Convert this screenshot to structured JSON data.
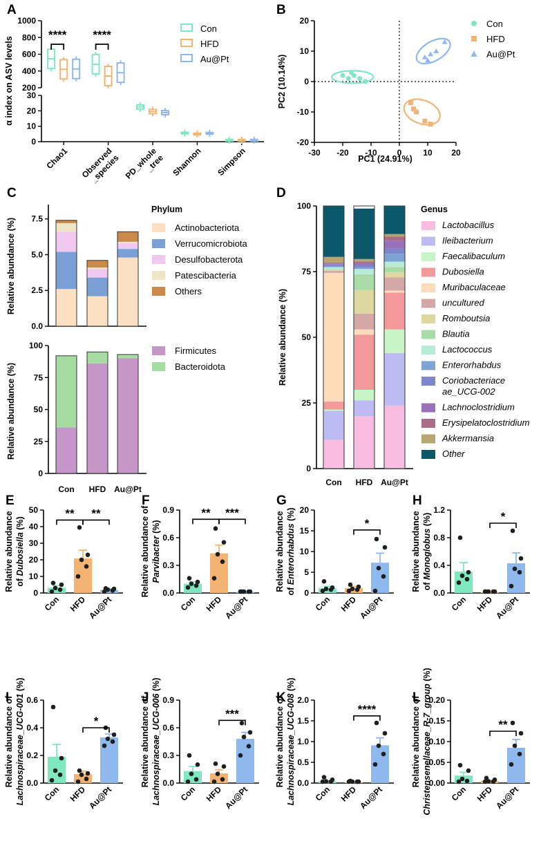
{
  "colors": {
    "con": "#7fe8c0",
    "hfd": "#f5b373",
    "aupt": "#8fb8ee",
    "axis": "#000000",
    "dark": "#1f1f1f"
  },
  "groups": [
    "Con",
    "HFD",
    "Au@Pt"
  ],
  "panels": [
    {
      "id": "A",
      "type": "box",
      "ylabel": "α index on ASV levels",
      "categories": [
        "Chao1",
        "Observed\n_species",
        "PD_whole\n_tree",
        "Shannon",
        "Simpson"
      ],
      "upper_ticks": [
        "200",
        "400",
        "600",
        "800",
        "1000"
      ],
      "lower_ticks": [
        "0",
        "10",
        "20",
        "30"
      ],
      "series": [
        {
          "name": "Con",
          "values": [
            545,
            480,
            22.5,
            5.6,
            0.95
          ]
        },
        {
          "name": "HFD",
          "values": [
            420,
            340,
            19.5,
            5.0,
            0.92
          ]
        },
        {
          "name": "Au@Pt",
          "values": [
            425,
            380,
            18.8,
            5.4,
            0.94
          ]
        }
      ],
      "annotations": [
        {
          "between": "Con-HFD",
          "cat": "Chao1",
          "label": "****"
        },
        {
          "between": "Con-HFD",
          "cat": "Observed_species",
          "label": "****"
        }
      ]
    },
    {
      "id": "B",
      "type": "scatter",
      "xlabel": "PC1 (24.91%)",
      "ylabel": "PC2 (10.14%)",
      "xticks": [
        "-30",
        "-20",
        "-10",
        "0",
        "10",
        "20"
      ],
      "yticks": [
        "-20",
        "-10",
        "0",
        "10",
        "20"
      ],
      "xlim": [
        -30,
        20
      ],
      "ylim": [
        -20,
        20
      ],
      "series": [
        {
          "name": "Con",
          "points": [
            [
              -20,
              2
            ],
            [
              -17,
              3
            ],
            [
              -16,
              2
            ],
            [
              -14,
              1
            ],
            [
              -18,
              1
            ],
            [
              -12,
              0
            ]
          ]
        },
        {
          "name": "HFD",
          "points": [
            [
              4,
              -7
            ],
            [
              5,
              -9
            ],
            [
              6,
              -10
            ],
            [
              9,
              -13
            ],
            [
              11,
              -14
            ]
          ]
        },
        {
          "name": "Au@Pt",
          "points": [
            [
              9,
              8
            ],
            [
              11,
              9
            ],
            [
              13,
              10
            ],
            [
              16,
              13
            ],
            [
              10,
              7
            ]
          ]
        }
      ]
    },
    {
      "id": "C",
      "type": "stacked-bar",
      "ylabel_top": "Relative abundance (%)",
      "ylabel_bottom": "Relative abundance (%)",
      "legend_title": "Phylum",
      "legend_top": [
        "Actinobacteriota",
        "Verrucomicrobiota",
        "Desulfobacterota",
        "Patescibacteria",
        "Others"
      ],
      "legend_bottom": [
        "Firmicutes",
        "Bacteroidota"
      ],
      "top_ticks": [
        "0.0",
        "2.5",
        "5.0",
        "7.5"
      ],
      "bottom_ticks": [
        "0",
        "25",
        "50",
        "75",
        "100"
      ],
      "top_series": [
        {
          "name": "Actinobacteriota",
          "color": "#fde0c2",
          "values": [
            2.6,
            2.1,
            4.8
          ]
        },
        {
          "name": "Verrucomicrobiota",
          "color": "#7aa0d6",
          "values": [
            2.6,
            1.3,
            0.6
          ]
        },
        {
          "name": "Desulfobacterota",
          "color": "#f0c8f0",
          "values": [
            1.4,
            0.6,
            0.4
          ]
        },
        {
          "name": "Patescibacteria",
          "color": "#efe5c7",
          "values": [
            0.6,
            0.1,
            0.1
          ]
        },
        {
          "name": "Others",
          "color": "#c98a4a",
          "values": [
            0.2,
            0.5,
            0.7
          ]
        }
      ],
      "bottom_series": [
        {
          "name": "Firmicutes",
          "color": "#c497c8",
          "values": [
            36,
            86,
            90
          ]
        },
        {
          "name": "Bacteroidota",
          "color": "#a6dca2",
          "values": [
            56,
            9,
            3
          ]
        }
      ]
    },
    {
      "id": "D",
      "type": "stacked-bar",
      "ylabel": "Relative abundance (%)",
      "legend_title": "Genus",
      "ticks": [
        "0",
        "25",
        "50",
        "75",
        "100"
      ],
      "series": [
        {
          "name": "Lactobacillus",
          "color": "#f7bcdf",
          "values": [
            11,
            20,
            24
          ]
        },
        {
          "name": "Ileibacterium",
          "color": "#bcbcf2",
          "values": [
            11,
            6,
            20
          ]
        },
        {
          "name": "Faecalibaculum",
          "color": "#c8f5c8",
          "values": [
            0.5,
            4,
            9
          ]
        },
        {
          "name": "Dubosiella",
          "color": "#f3999b",
          "values": [
            3,
            21,
            14
          ]
        },
        {
          "name": "Muribaculaceae",
          "color": "#fddcbc",
          "values": [
            49,
            2,
            0.8
          ]
        },
        {
          "name": "uncultured",
          "color": "#d5a8a8",
          "values": [
            0.8,
            6,
            5
          ]
        },
        {
          "name": "Romboutsia",
          "color": "#ddd8a0",
          "values": [
            0.3,
            9,
            2
          ]
        },
        {
          "name": "Blautia",
          "color": "#a9dba9",
          "values": [
            0.3,
            6,
            2
          ]
        },
        {
          "name": "Lactococcus",
          "color": "#b8ecd8",
          "values": [
            0.8,
            2,
            2
          ]
        },
        {
          "name": "Enterorhabdus",
          "color": "#7ea3d3",
          "values": [
            0.3,
            0.5,
            3
          ]
        },
        {
          "name": "Coriobacteriace ae_UCG-002",
          "color": "#7f86cc",
          "values": [
            0.8,
            1,
            2
          ]
        },
        {
          "name": "Lachnoclostridium",
          "color": "#9a70bb",
          "values": [
            0.3,
            0.8,
            3
          ]
        },
        {
          "name": "Erysipelatoclostridium",
          "color": "#ab6a87",
          "values": [
            0.3,
            0.5,
            1.5
          ]
        },
        {
          "name": "Akkermansia",
          "color": "#b8a572",
          "values": [
            2.2,
            1,
            1
          ]
        },
        {
          "name": "Other",
          "color": "#0c586b",
          "values": [
            19.4,
            19.2,
            10.7
          ]
        }
      ]
    },
    {
      "id": "E",
      "ylabel_plain": "Relative abundance",
      "ylabel_species": "of Dubosiella (%)",
      "ylabel_prefix": "of ",
      "ylabel_italic": "Dubosiella",
      "ylabel_suffix": " (%)",
      "ylim": [
        0,
        50
      ],
      "ticks": [
        "0",
        "10",
        "20",
        "30",
        "40",
        "50"
      ],
      "means": [
        3.2,
        20.8,
        1.8
      ],
      "sems": [
        1.2,
        5.0,
        0.6
      ],
      "points": [
        [
          0.5,
          2,
          3,
          5,
          6
        ],
        [
          10,
          16,
          20,
          23,
          39.5
        ],
        [
          0.8,
          1.5,
          2,
          2.5,
          2.8
        ]
      ],
      "sig": [
        {
          "from": 0,
          "to": 1,
          "label": "**",
          "y": 44
        },
        {
          "from": 1,
          "to": 2,
          "label": "**",
          "y": 44
        }
      ]
    },
    {
      "id": "F",
      "ylabel_plain": "Relative abundance of",
      "ylabel_species": "Parvibacter (%)",
      "ylabel_prefix": "",
      "ylabel_italic": "Parvibacter",
      "ylabel_suffix": " (%)",
      "ylim": [
        0,
        0.9
      ],
      "ticks": [
        "0.0",
        "0.3",
        "0.6",
        "0.9"
      ],
      "means": [
        0.1,
        0.43,
        0.01
      ],
      "sems": [
        0.02,
        0.09,
        0.003
      ],
      "points": [
        [
          0.06,
          0.08,
          0.1,
          0.12,
          0.16
        ],
        [
          0.16,
          0.34,
          0.42,
          0.55,
          0.7
        ],
        [
          0.005,
          0.008,
          0.01,
          0.012,
          0.015
        ]
      ],
      "sig": [
        {
          "from": 0,
          "to": 1,
          "label": "**",
          "y": 0.8
        },
        {
          "from": 1,
          "to": 2,
          "label": "***",
          "y": 0.8
        }
      ]
    },
    {
      "id": "G",
      "ylabel_plain": "Relative abundance",
      "ylabel_species": "of Enterorhabdus (%)",
      "ylabel_prefix": "of ",
      "ylabel_italic": "Enterorhabdus",
      "ylabel_suffix": " (%)",
      "ylim": [
        0,
        20
      ],
      "ticks": [
        "0",
        "5",
        "10",
        "15",
        "20"
      ],
      "means": [
        1.2,
        1.2,
        7.3
      ],
      "sems": [
        0.4,
        0.4,
        2.3
      ],
      "points": [
        [
          0.5,
          0.8,
          1,
          1.3,
          2.8
        ],
        [
          0.5,
          0.8,
          1,
          1.5,
          2
        ],
        [
          0.5,
          4,
          6,
          11,
          13
        ]
      ],
      "sig": [
        {
          "from": 1,
          "to": 2,
          "label": "*",
          "y": 15.2
        }
      ]
    },
    {
      "id": "H",
      "ylabel_plain": "Relative abundance",
      "ylabel_species": "of Monoglobus (%)",
      "ylabel_prefix": "of ",
      "ylabel_italic": "Monoglobus",
      "ylabel_suffix": " (%)",
      "ylim": [
        0,
        1.2
      ],
      "ticks": [
        "0.0",
        "0.4",
        "0.8",
        "1.2"
      ],
      "means": [
        0.31,
        0.01,
        0.43
      ],
      "sems": [
        0.13,
        0.003,
        0.15
      ],
      "points": [
        [
          0.15,
          0.2,
          0.25,
          0.3,
          0.8
        ],
        [
          0.005,
          0.008,
          0.01,
          0.012,
          0.015
        ],
        [
          0.1,
          0.3,
          0.35,
          0.5,
          0.9
        ]
      ],
      "sig": [
        {
          "from": 1,
          "to": 2,
          "label": "*",
          "y": 1.01
        }
      ]
    },
    {
      "id": "I",
      "ylabel_plain": "Relative abundance of",
      "ylabel_species": "Lachnospiraceae_UCG-001 (%)",
      "ylabel_prefix": "",
      "ylabel_italic": "Lachnospiraceae_UCG-001",
      "ylabel_suffix": " (%)",
      "ylim": [
        0,
        0.6
      ],
      "ticks": [
        "0.0",
        "0.2",
        "0.4",
        "0.6"
      ],
      "means": [
        0.19,
        0.065,
        0.33
      ],
      "sems": [
        0.09,
        0.02,
        0.025
      ],
      "points": [
        [
          0.02,
          0.06,
          0.09,
          0.18,
          0.55
        ],
        [
          0.01,
          0.03,
          0.06,
          0.07,
          0.09
        ],
        [
          0.27,
          0.3,
          0.32,
          0.35,
          0.4
        ]
      ],
      "sig": [
        {
          "from": 1,
          "to": 2,
          "label": "*",
          "y": 0.4
        }
      ]
    },
    {
      "id": "J",
      "ylabel_plain": "Relative abundance of",
      "ylabel_species": "Lachnospiraceae_UCG-006 (%)",
      "ylabel_prefix": "",
      "ylabel_italic": "Lachnospiraceae_UCG-006",
      "ylabel_suffix": " (%)",
      "ylim": [
        0,
        0.9
      ],
      "ticks": [
        "0.0",
        "0.3",
        "0.6",
        "0.9"
      ],
      "means": [
        0.13,
        0.105,
        0.48
      ],
      "sems": [
        0.05,
        0.04,
        0.07
      ],
      "points": [
        [
          0.01,
          0.04,
          0.1,
          0.2,
          0.3
        ],
        [
          0.01,
          0.04,
          0.1,
          0.18,
          0.21
        ],
        [
          0.3,
          0.4,
          0.5,
          0.55,
          0.65
        ]
      ],
      "sig": [
        {
          "from": 1,
          "to": 2,
          "label": "***",
          "y": 0.68
        }
      ]
    },
    {
      "id": "K",
      "ylabel_plain": "Relative abundance of",
      "ylabel_species": "Lachnospiraceae_UCG-008 (%)",
      "ylabel_prefix": "",
      "ylabel_italic": "Lachnospiraceae_UCG-008",
      "ylabel_suffix": " (%)",
      "ylim": [
        0,
        2.0
      ],
      "ticks": [
        "0.0",
        "0.5",
        "1.0",
        "1.5",
        "2.0"
      ],
      "means": [
        0.04,
        0.02,
        0.91
      ],
      "sems": [
        0.02,
        0.01,
        0.18
      ],
      "points": [
        [
          0.01,
          0.02,
          0.04,
          0.08,
          0.14
        ],
        [
          0.005,
          0.01,
          0.02,
          0.03,
          0.05
        ],
        [
          0.45,
          0.7,
          0.9,
          1.2,
          1.45
        ]
      ],
      "sig": [
        {
          "from": 1,
          "to": 2,
          "label": "****",
          "y": 1.62
        }
      ]
    },
    {
      "id": "L",
      "ylabel_plain": "Relative abundance of",
      "ylabel_species": "Christensenellaceae_R-7_group (%)",
      "ylabel_prefix": "",
      "ylabel_italic": "Christensenellaceae_R-7_group",
      "ylabel_suffix": " (%)",
      "ylim": [
        0,
        0.2
      ],
      "ticks": [
        "0.00",
        "0.05",
        "0.10",
        "0.15",
        "0.20"
      ],
      "means": [
        0.018,
        0.005,
        0.085
      ],
      "sems": [
        0.008,
        0.002,
        0.02
      ],
      "points": [
        [
          0.002,
          0.005,
          0.01,
          0.03,
          0.043
        ],
        [
          0.001,
          0.002,
          0.004,
          0.008,
          0.012
        ],
        [
          0.045,
          0.07,
          0.09,
          0.12,
          0.145
        ]
      ],
      "sig": [
        {
          "from": 1,
          "to": 2,
          "label": "**",
          "y": 0.125
        }
      ]
    }
  ],
  "chart_data": [
    {
      "type": "box",
      "title": "A",
      "categories": [
        "Chao1",
        "Observed_species",
        "PD_whole_tree",
        "Shannon",
        "Simpson"
      ],
      "ylabel": "α index on ASV levels",
      "series": [
        {
          "name": "Con",
          "values": [
            545,
            480,
            22.5,
            5.6,
            0.95
          ]
        },
        {
          "name": "HFD",
          "values": [
            420,
            340,
            19.5,
            5.0,
            0.92
          ]
        },
        {
          "name": "Au@Pt",
          "values": [
            425,
            380,
            18.8,
            5.4,
            0.94
          ]
        }
      ]
    },
    {
      "type": "scatter",
      "title": "B",
      "xlabel": "PC1 (24.91%)",
      "ylabel": "PC2 (10.14%)",
      "xlim": [
        -30,
        20
      ],
      "ylim": [
        -20,
        20
      ]
    },
    {
      "type": "bar",
      "title": "C",
      "categories": [
        "Con",
        "HFD",
        "Au@Pt"
      ],
      "ylabel": "Relative abundance (%)"
    },
    {
      "type": "bar",
      "title": "D",
      "categories": [
        "Con",
        "HFD",
        "Au@Pt"
      ],
      "ylabel": "Relative abundance (%)",
      "ylim": [
        0,
        100
      ]
    },
    {
      "type": "bar",
      "title": "E",
      "categories": [
        "Con",
        "HFD",
        "Au@Pt"
      ],
      "values": [
        3.2,
        20.8,
        1.8
      ],
      "ylim": [
        0,
        50
      ]
    },
    {
      "type": "bar",
      "title": "F",
      "categories": [
        "Con",
        "HFD",
        "Au@Pt"
      ],
      "values": [
        0.1,
        0.43,
        0.01
      ],
      "ylim": [
        0,
        0.9
      ]
    },
    {
      "type": "bar",
      "title": "G",
      "categories": [
        "Con",
        "HFD",
        "Au@Pt"
      ],
      "values": [
        1.2,
        1.2,
        7.3
      ],
      "ylim": [
        0,
        20
      ]
    },
    {
      "type": "bar",
      "title": "H",
      "categories": [
        "Con",
        "HFD",
        "Au@Pt"
      ],
      "values": [
        0.31,
        0.01,
        0.43
      ],
      "ylim": [
        0,
        1.2
      ]
    },
    {
      "type": "bar",
      "title": "I",
      "categories": [
        "Con",
        "HFD",
        "Au@Pt"
      ],
      "values": [
        0.19,
        0.065,
        0.33
      ],
      "ylim": [
        0,
        0.6
      ]
    },
    {
      "type": "bar",
      "title": "J",
      "categories": [
        "Con",
        "HFD",
        "Au@Pt"
      ],
      "values": [
        0.13,
        0.105,
        0.48
      ],
      "ylim": [
        0,
        0.9
      ]
    },
    {
      "type": "bar",
      "title": "K",
      "categories": [
        "Con",
        "HFD",
        "Au@Pt"
      ],
      "values": [
        0.04,
        0.02,
        0.91
      ],
      "ylim": [
        0,
        2.0
      ]
    },
    {
      "type": "bar",
      "title": "L",
      "categories": [
        "Con",
        "HFD",
        "Au@Pt"
      ],
      "values": [
        0.018,
        0.005,
        0.085
      ],
      "ylim": [
        0,
        0.2
      ]
    }
  ]
}
